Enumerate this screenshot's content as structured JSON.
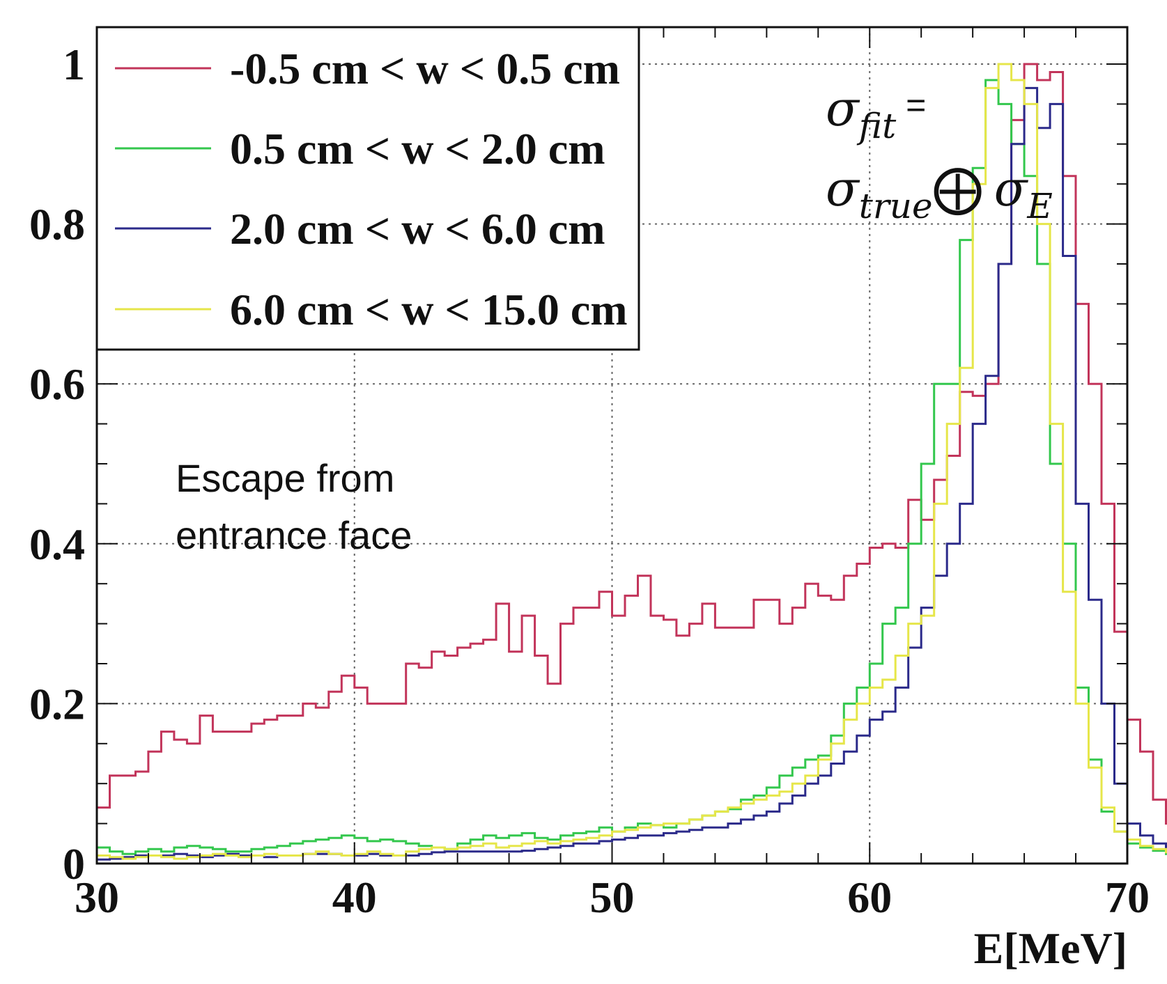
{
  "chart_data": {
    "type": "line",
    "xlabel": "E[MeV]",
    "ylabel": "",
    "xlim": [
      30,
      70
    ],
    "ylim": [
      0,
      1.05
    ],
    "x_ticks": [
      "30",
      "40",
      "50",
      "60",
      "70"
    ],
    "y_ticks": [
      "0",
      "0.2",
      "0.4",
      "0.6",
      "0.8",
      "1"
    ],
    "grid": true,
    "legend_position": "top-left",
    "bin_width": 0.5,
    "x_start": 30,
    "series": [
      {
        "name": "-0.5 cm < w < 0.5 cm",
        "color": "#c2345a",
        "values": [
          0.07,
          0.11,
          0.11,
          0.115,
          0.14,
          0.165,
          0.155,
          0.15,
          0.185,
          0.165,
          0.165,
          0.165,
          0.175,
          0.18,
          0.185,
          0.185,
          0.2,
          0.195,
          0.215,
          0.235,
          0.22,
          0.2,
          0.2,
          0.2,
          0.25,
          0.245,
          0.265,
          0.26,
          0.27,
          0.275,
          0.28,
          0.325,
          0.265,
          0.31,
          0.26,
          0.225,
          0.3,
          0.32,
          0.32,
          0.34,
          0.31,
          0.335,
          0.36,
          0.31,
          0.305,
          0.285,
          0.3,
          0.325,
          0.295,
          0.295,
          0.295,
          0.33,
          0.33,
          0.3,
          0.32,
          0.35,
          0.335,
          0.33,
          0.36,
          0.375,
          0.395,
          0.4,
          0.395,
          0.455,
          0.43,
          0.48,
          0.51,
          0.59,
          0.585,
          0.6,
          0.75,
          0.93,
          1.0,
          0.98,
          0.99,
          0.86,
          0.7,
          0.6,
          0.45,
          0.29,
          0.18,
          0.14,
          0.08,
          0.05,
          0.04,
          0.025,
          0.02,
          0.012,
          0.01,
          0.01,
          0.008,
          0.006,
          0.005,
          0.004,
          0.003,
          0.003,
          0.002,
          0.002,
          0.002,
          0.001,
          0.001,
          0.001,
          0.001,
          0.001,
          0.001,
          0.0,
          0.0,
          0.0,
          0.0,
          0.0,
          0.0,
          0.0,
          0.0,
          0.0,
          0.0,
          0.0,
          0.0,
          0.0,
          0.0,
          0.0
        ]
      },
      {
        "name": "0.5 cm < w < 2.0 cm",
        "color": "#33c74d",
        "values": [
          0.02,
          0.015,
          0.012,
          0.015,
          0.018,
          0.015,
          0.02,
          0.022,
          0.02,
          0.018,
          0.015,
          0.015,
          0.018,
          0.02,
          0.022,
          0.025,
          0.028,
          0.03,
          0.032,
          0.035,
          0.032,
          0.028,
          0.03,
          0.028,
          0.025,
          0.022,
          0.02,
          0.018,
          0.025,
          0.03,
          0.035,
          0.032,
          0.035,
          0.038,
          0.032,
          0.03,
          0.035,
          0.038,
          0.04,
          0.045,
          0.04,
          0.045,
          0.05,
          0.048,
          0.045,
          0.05,
          0.055,
          0.06,
          0.065,
          0.068,
          0.08,
          0.085,
          0.095,
          0.11,
          0.12,
          0.13,
          0.135,
          0.16,
          0.2,
          0.22,
          0.25,
          0.3,
          0.32,
          0.4,
          0.5,
          0.6,
          0.6,
          0.78,
          0.87,
          0.98,
          0.95,
          0.9,
          0.86,
          0.75,
          0.5,
          0.4,
          0.22,
          0.13,
          0.065,
          0.04,
          0.025,
          0.02,
          0.016,
          0.012,
          0.01,
          0.008,
          0.006,
          0.005,
          0.004,
          0.004,
          0.003,
          0.002,
          0.002,
          0.002,
          0.001,
          0.002,
          0.001,
          0.001,
          0.001,
          0.001,
          0.001,
          0.0,
          0.001,
          0.0,
          0.0,
          0.0,
          0.0,
          0.0,
          0.0,
          0.0,
          0.0,
          0.0,
          0.0,
          0.0,
          0.0,
          0.0,
          0.0,
          0.0,
          0.0,
          0.0
        ]
      },
      {
        "name": "2.0 cm < w < 6.0 cm",
        "color": "#2b2a8a",
        "values": [
          0.005,
          0.006,
          0.008,
          0.01,
          0.01,
          0.01,
          0.012,
          0.01,
          0.008,
          0.01,
          0.012,
          0.01,
          0.01,
          0.008,
          0.01,
          0.01,
          0.012,
          0.012,
          0.012,
          0.01,
          0.01,
          0.012,
          0.01,
          0.01,
          0.01,
          0.012,
          0.014,
          0.015,
          0.015,
          0.015,
          0.015,
          0.015,
          0.015,
          0.016,
          0.018,
          0.02,
          0.022,
          0.025,
          0.025,
          0.028,
          0.03,
          0.032,
          0.035,
          0.035,
          0.038,
          0.04,
          0.042,
          0.045,
          0.045,
          0.05,
          0.055,
          0.06,
          0.065,
          0.075,
          0.085,
          0.1,
          0.11,
          0.125,
          0.14,
          0.16,
          0.18,
          0.19,
          0.22,
          0.27,
          0.32,
          0.36,
          0.4,
          0.45,
          0.55,
          0.61,
          0.75,
          0.9,
          0.97,
          0.92,
          0.95,
          0.76,
          0.45,
          0.33,
          0.2,
          0.1,
          0.05,
          0.035,
          0.025,
          0.018,
          0.012,
          0.01,
          0.008,
          0.006,
          0.005,
          0.004,
          0.003,
          0.002,
          0.002,
          0.002,
          0.001,
          0.001,
          0.001,
          0.001,
          0.001,
          0.001,
          0.0,
          0.0,
          0.0,
          0.0,
          0.0,
          0.0,
          0.0,
          0.0,
          0.0,
          0.0,
          0.0,
          0.0,
          0.0,
          0.0,
          0.0,
          0.0,
          0.0,
          0.0,
          0.0,
          0.0
        ]
      },
      {
        "name": "6.0 cm < w < 15.0 cm",
        "color": "#e6e64a",
        "values": [
          0.01,
          0.008,
          0.006,
          0.008,
          0.01,
          0.008,
          0.006,
          0.008,
          0.01,
          0.012,
          0.01,
          0.008,
          0.01,
          0.012,
          0.01,
          0.01,
          0.012,
          0.015,
          0.012,
          0.01,
          0.012,
          0.015,
          0.012,
          0.01,
          0.015,
          0.018,
          0.02,
          0.018,
          0.02,
          0.022,
          0.025,
          0.02,
          0.022,
          0.025,
          0.028,
          0.025,
          0.028,
          0.03,
          0.032,
          0.035,
          0.04,
          0.042,
          0.045,
          0.048,
          0.05,
          0.05,
          0.055,
          0.06,
          0.065,
          0.07,
          0.075,
          0.08,
          0.085,
          0.09,
          0.1,
          0.11,
          0.13,
          0.15,
          0.18,
          0.2,
          0.22,
          0.23,
          0.26,
          0.3,
          0.31,
          0.45,
          0.55,
          0.62,
          0.85,
          0.97,
          1.0,
          0.98,
          0.95,
          0.8,
          0.55,
          0.34,
          0.2,
          0.12,
          0.07,
          0.04,
          0.03,
          0.022,
          0.018,
          0.014,
          0.012,
          0.01,
          0.008,
          0.007,
          0.006,
          0.005,
          0.004,
          0.004,
          0.003,
          0.003,
          0.002,
          0.002,
          0.002,
          0.002,
          0.002,
          0.001,
          0.001,
          0.001,
          0.001,
          0.001,
          0.001,
          0.001,
          0.0,
          0.0,
          0.0,
          0.0,
          0.0,
          0.0,
          0.0,
          0.0,
          0.0,
          0.0,
          0.0,
          0.0,
          0.0,
          0.0
        ]
      }
    ],
    "annotations": [
      {
        "lines": [
          "Escape from",
          "entrance face"
        ]
      }
    ],
    "formula": {
      "line1": {
        "symbol": "σ",
        "sub": "fit",
        "tail": " ="
      },
      "line2": {
        "symbol": "σ",
        "sub": "true",
        "op": "⨁",
        "symbol2": "σ",
        "sub2": "E"
      }
    }
  }
}
